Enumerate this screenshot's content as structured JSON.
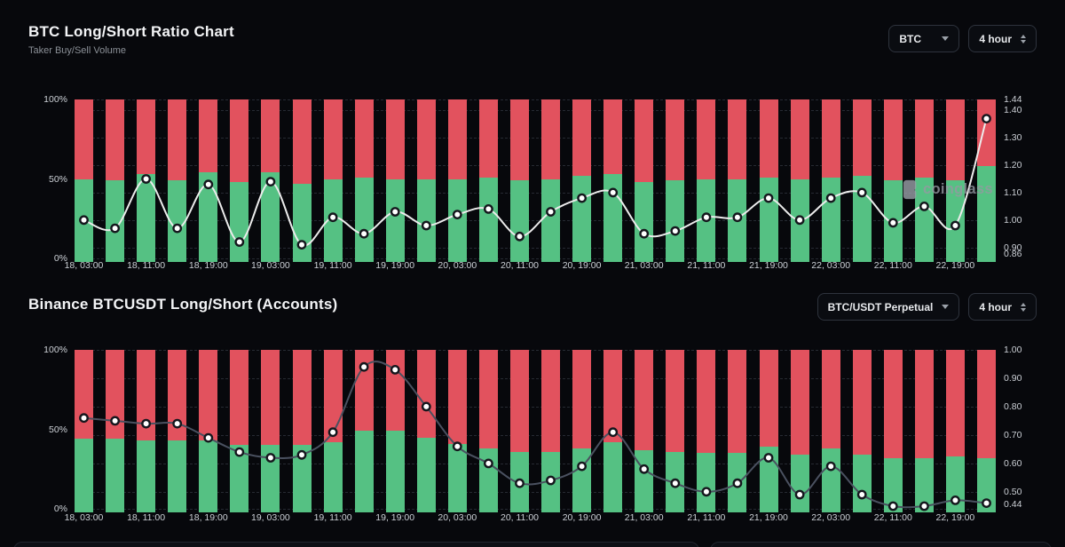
{
  "watermark": {
    "text": "coinglass"
  },
  "sections": [
    {
      "title": "BTC Long/Short Ratio Chart",
      "subtitle": "Taker Buy/Sell Volume",
      "selects": [
        {
          "value": "BTC",
          "caret": "down"
        },
        {
          "value": "4 hour",
          "caret": "updown"
        }
      ]
    },
    {
      "title": "Binance BTCUSDT Long/Short (Accounts)",
      "selects": [
        {
          "value": "BTC/USDT Perpetual",
          "caret": "down"
        },
        {
          "value": "4 hour",
          "caret": "updown"
        }
      ]
    }
  ],
  "colors": {
    "long_green": "#55c183",
    "short_red": "#e2525e",
    "line_chart1": "#ececec",
    "line_chart2": "#4a5160",
    "marker_fill": "#ffffff",
    "marker_stroke": "#15171d",
    "grid": "#262a32",
    "axis_text": "#ccd0d6"
  },
  "chart_data": [
    {
      "type": "bar",
      "subtype": "stacked-100pct-with-ratio-line",
      "title": "BTC Long/Short Ratio Chart",
      "interval": "4 hour",
      "x_labels": [
        "18, 03:00",
        "18, 11:00",
        "18, 19:00",
        "19, 03:00",
        "19, 11:00",
        "19, 19:00",
        "20, 03:00",
        "20, 11:00",
        "20, 19:00",
        "21, 03:00",
        "21, 11:00",
        "21, 19:00",
        "22, 03:00",
        "22, 11:00",
        "22, 19:00"
      ],
      "bar_count": 30,
      "series": [
        {
          "name": "long_pct",
          "color": "#55c183",
          "values": [
            50,
            49,
            53,
            49,
            54,
            48,
            54,
            47,
            50,
            51,
            50,
            50,
            50,
            51,
            49,
            50,
            52,
            53,
            48,
            49,
            50,
            50,
            51,
            50,
            51,
            52,
            49,
            51,
            49,
            58
          ]
        },
        {
          "name": "short_pct",
          "color": "#e2525e",
          "values": [
            50,
            51,
            47,
            51,
            46,
            52,
            46,
            53,
            50,
            49,
            50,
            50,
            50,
            49,
            51,
            50,
            48,
            47,
            52,
            51,
            50,
            50,
            49,
            50,
            49,
            48,
            51,
            49,
            51,
            42
          ]
        }
      ],
      "line": {
        "name": "long_short_ratio",
        "color": "#ececec",
        "values": [
          1.0,
          0.97,
          1.15,
          0.97,
          1.13,
          0.92,
          1.14,
          0.91,
          1.01,
          0.95,
          1.03,
          0.98,
          1.02,
          1.04,
          0.94,
          1.03,
          1.08,
          1.1,
          0.95,
          0.96,
          1.01,
          1.01,
          1.08,
          1.0,
          1.08,
          1.1,
          0.99,
          1.05,
          0.98,
          1.37
        ]
      },
      "left_axis": {
        "ticks": [
          "100%",
          "50%",
          "0%"
        ],
        "min": 0,
        "max": 100
      },
      "right_axis": {
        "min": 0.86,
        "max": 1.44,
        "ticks": [
          "1.44",
          "1.40",
          "1.30",
          "1.20",
          "1.10",
          "1.00",
          "0.90",
          "0.86"
        ]
      }
    },
    {
      "type": "bar",
      "subtype": "stacked-100pct-with-ratio-line",
      "title": "Binance BTCUSDT Long/Short (Accounts)",
      "interval": "4 hour",
      "x_labels": [
        "18, 03:00",
        "18, 11:00",
        "18, 19:00",
        "19, 03:00",
        "19, 11:00",
        "19, 19:00",
        "20, 03:00",
        "20, 11:00",
        "20, 19:00",
        "21, 03:00",
        "21, 11:00",
        "21, 19:00",
        "22, 03:00",
        "22, 11:00",
        "22, 19:00"
      ],
      "bar_count": 30,
      "series": [
        {
          "name": "long_pct",
          "color": "#55c183",
          "values": [
            44,
            44,
            43,
            43,
            43,
            40,
            40,
            40,
            42,
            49,
            49,
            45,
            41,
            38,
            36,
            36,
            38,
            42,
            37,
            36,
            35,
            35,
            39,
            34,
            38,
            34,
            32,
            32,
            33,
            32
          ]
        },
        {
          "name": "short_pct",
          "color": "#e2525e",
          "values": [
            56,
            56,
            57,
            57,
            57,
            60,
            60,
            60,
            58,
            51,
            51,
            55,
            59,
            62,
            64,
            64,
            62,
            58,
            63,
            64,
            65,
            65,
            61,
            66,
            62,
            66,
            68,
            68,
            67,
            68
          ]
        }
      ],
      "line": {
        "name": "long_short_ratio",
        "color": "#4a5160",
        "values": [
          0.76,
          0.75,
          0.74,
          0.74,
          0.69,
          0.64,
          0.62,
          0.63,
          0.71,
          0.94,
          0.93,
          0.8,
          0.66,
          0.6,
          0.53,
          0.54,
          0.59,
          0.71,
          0.58,
          0.53,
          0.5,
          0.53,
          0.62,
          0.49,
          0.59,
          0.49,
          0.44,
          0.44,
          0.47,
          0.46
        ]
      },
      "left_axis": {
        "ticks": [
          "100%",
          "50%",
          "0%"
        ],
        "min": 0,
        "max": 100
      },
      "right_axis": {
        "min": 0.44,
        "max": 1.0,
        "ticks": [
          "1.00",
          "0.90",
          "0.80",
          "0.70",
          "0.60",
          "0.50",
          "0.44"
        ]
      }
    }
  ]
}
